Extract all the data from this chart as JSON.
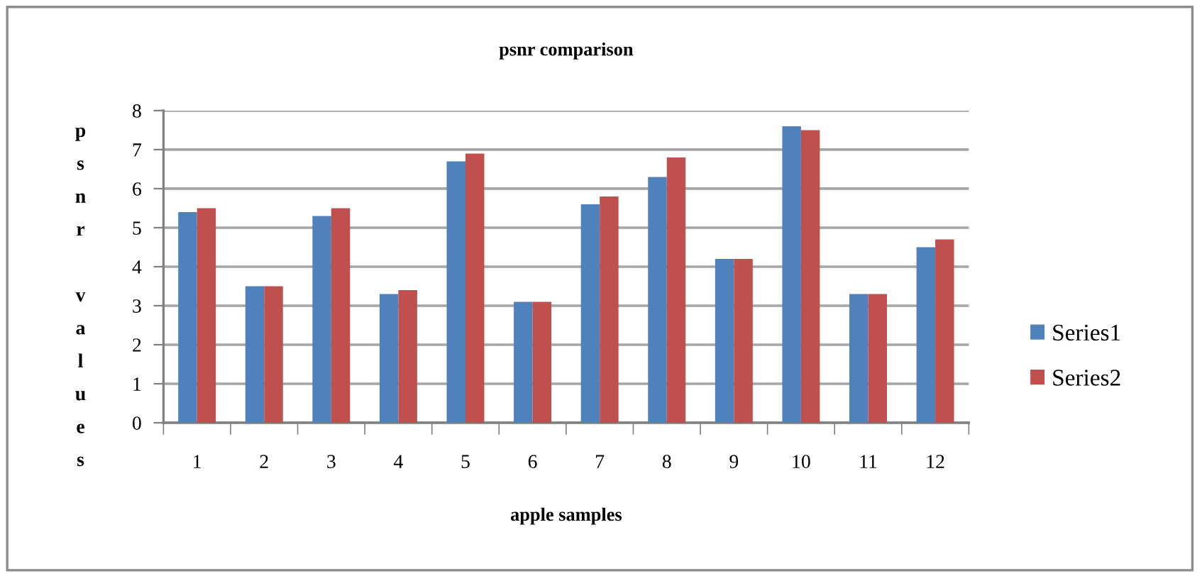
{
  "chart_data": {
    "type": "bar",
    "title": "psnr comparison",
    "xlabel": "apple samples",
    "ylabel": "psnr values",
    "categories": [
      "1",
      "2",
      "3",
      "4",
      "5",
      "6",
      "7",
      "8",
      "9",
      "10",
      "11",
      "12"
    ],
    "series": [
      {
        "name": "Series1",
        "color": "#4f81bd",
        "values": [
          5.4,
          3.5,
          5.3,
          3.3,
          6.7,
          3.1,
          5.6,
          6.3,
          4.2,
          7.6,
          3.3,
          4.5
        ]
      },
      {
        "name": "Series2",
        "color": "#c0504d",
        "values": [
          5.5,
          3.5,
          5.5,
          3.4,
          6.9,
          3.1,
          5.8,
          6.8,
          4.2,
          7.5,
          3.3,
          4.7
        ]
      }
    ],
    "ylim": [
      0,
      8
    ],
    "yticks": [
      0,
      1,
      2,
      3,
      4,
      5,
      6,
      7,
      8
    ],
    "grid": "y",
    "legend": "right"
  }
}
